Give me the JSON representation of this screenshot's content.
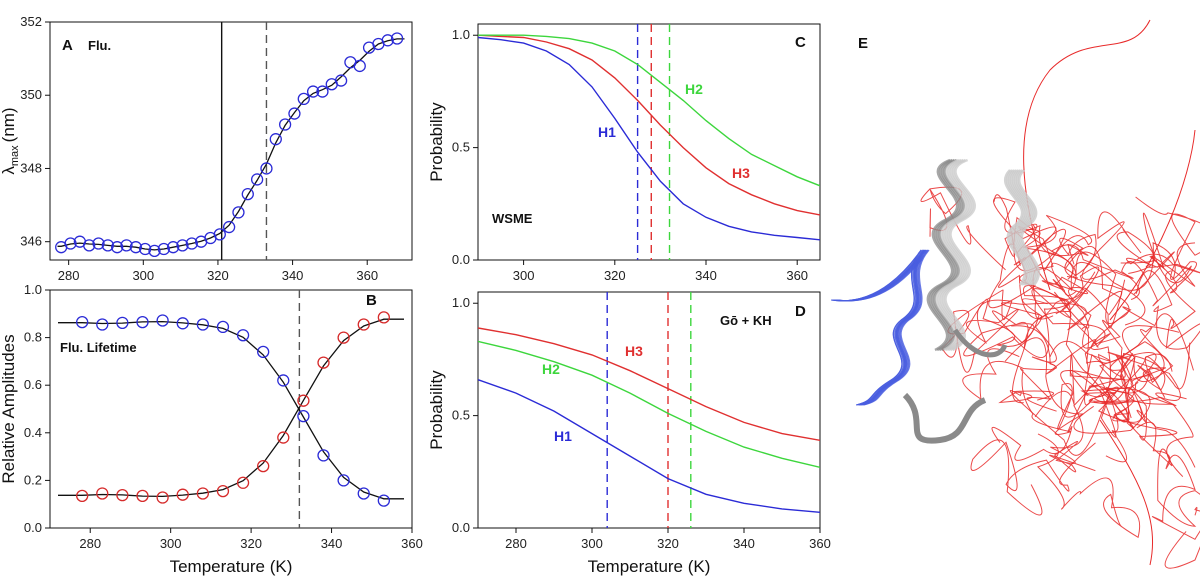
{
  "chart_data": [
    {
      "id": "A",
      "panel_label": "A",
      "type": "scatter",
      "annotation": "Flu.",
      "xlabel": "",
      "ylabel_main": "λ",
      "ylabel_sub": "max",
      "ylabel_unit": "(nm)",
      "xlim": [
        275,
        372
      ],
      "ylim": [
        345.5,
        352
      ],
      "xticks": [
        280,
        300,
        320,
        340,
        360
      ],
      "yticks": [
        346,
        348,
        350,
        352
      ],
      "vlines": [
        {
          "x": 321,
          "style": "solid",
          "color": "#111111"
        },
        {
          "x": 333,
          "style": "dashed",
          "color": "#555555"
        }
      ],
      "series": [
        {
          "marker_color": "#2b2bd6",
          "x": [
            278,
            280.5,
            283,
            285.5,
            288,
            290.5,
            293,
            295.5,
            298,
            300.5,
            303,
            305.5,
            308,
            310.5,
            313,
            315.5,
            318,
            320.5,
            323,
            325.5,
            328,
            330.5,
            333,
            335.5,
            338,
            340.5,
            343,
            345.5,
            348,
            350.5,
            353,
            355.5,
            358,
            360.5,
            363,
            365.5,
            368
          ],
          "y": [
            345.85,
            345.95,
            346.0,
            345.9,
            345.95,
            345.9,
            345.85,
            345.9,
            345.85,
            345.8,
            345.75,
            345.8,
            345.85,
            345.9,
            345.95,
            346.0,
            346.1,
            346.2,
            346.4,
            346.8,
            347.3,
            347.7,
            348.0,
            348.8,
            349.2,
            349.5,
            349.9,
            350.1,
            350.1,
            350.3,
            350.4,
            350.9,
            350.8,
            351.3,
            351.4,
            351.5,
            351.55
          ],
          "fit_color": "#111111"
        }
      ]
    },
    {
      "id": "B",
      "panel_label": "B",
      "type": "scatter",
      "annotation": "Flu. Lifetime",
      "xlabel": "Temperature (K)",
      "ylabel": "Relative Amplitudes",
      "xlim": [
        270,
        360
      ],
      "ylim": [
        0.0,
        1.0
      ],
      "xticks": [
        280,
        300,
        320,
        340,
        360
      ],
      "yticks": [
        0.0,
        0.2,
        0.4,
        0.6,
        0.8,
        1.0
      ],
      "vlines": [
        {
          "x": 332,
          "style": "dashed",
          "color": "#555555"
        }
      ],
      "series": [
        {
          "marker_color": "#2b2bd6",
          "x": [
            278,
            283,
            288,
            293,
            298,
            303,
            308,
            313,
            318,
            323,
            328,
            333,
            338,
            343,
            348,
            353
          ],
          "y": [
            0.865,
            0.855,
            0.862,
            0.865,
            0.872,
            0.86,
            0.855,
            0.845,
            0.81,
            0.74,
            0.62,
            0.47,
            0.305,
            0.2,
            0.145,
            0.115
          ],
          "fit_color": "#111111"
        },
        {
          "marker_color": "#d62b2b",
          "x": [
            278,
            283,
            288,
            293,
            298,
            303,
            308,
            313,
            318,
            323,
            328,
            333,
            338,
            343,
            348,
            353
          ],
          "y": [
            0.135,
            0.145,
            0.138,
            0.135,
            0.128,
            0.14,
            0.145,
            0.155,
            0.19,
            0.26,
            0.38,
            0.535,
            0.695,
            0.8,
            0.855,
            0.885
          ],
          "fit_color": "#111111"
        }
      ]
    },
    {
      "id": "C",
      "panel_label": "C",
      "type": "line",
      "annotation": "WSME",
      "xlabel": "",
      "ylabel": "Probability",
      "xlim": [
        290,
        365
      ],
      "ylim": [
        0.0,
        1.05
      ],
      "xticks": [
        300,
        320,
        340,
        360
      ],
      "yticks": [
        0.0,
        0.5,
        1.0
      ],
      "vlines": [
        {
          "x": 325,
          "style": "dashed",
          "color": "#2b2bd6"
        },
        {
          "x": 328,
          "style": "dashed",
          "color": "#e03030"
        },
        {
          "x": 332,
          "style": "dashed",
          "color": "#3dd63d"
        }
      ],
      "series": [
        {
          "name": "H1",
          "color": "#2b2bd6",
          "x": [
            290,
            295,
            300,
            305,
            310,
            315,
            320,
            325,
            330,
            335,
            340,
            345,
            350,
            355,
            360,
            365
          ],
          "y": [
            0.99,
            0.98,
            0.965,
            0.93,
            0.87,
            0.77,
            0.63,
            0.48,
            0.35,
            0.25,
            0.19,
            0.15,
            0.125,
            0.11,
            0.1,
            0.09
          ]
        },
        {
          "name": "H3",
          "color": "#e03030",
          "x": [
            290,
            295,
            300,
            305,
            310,
            315,
            320,
            325,
            330,
            335,
            340,
            345,
            350,
            355,
            360,
            365
          ],
          "y": [
            1.0,
            0.995,
            0.99,
            0.97,
            0.94,
            0.89,
            0.81,
            0.71,
            0.6,
            0.5,
            0.41,
            0.34,
            0.29,
            0.25,
            0.22,
            0.2
          ]
        },
        {
          "name": "H2",
          "color": "#3dd63d",
          "x": [
            290,
            295,
            300,
            305,
            310,
            315,
            320,
            325,
            330,
            335,
            340,
            345,
            350,
            355,
            360,
            365
          ],
          "y": [
            1.0,
            1.0,
            1.0,
            0.995,
            0.985,
            0.965,
            0.93,
            0.87,
            0.79,
            0.71,
            0.62,
            0.54,
            0.47,
            0.42,
            0.37,
            0.33
          ]
        }
      ]
    },
    {
      "id": "D",
      "panel_label": "D",
      "type": "line",
      "annotation": "Gō + KH",
      "xlabel": "Temperature (K)",
      "ylabel": "Probability",
      "xlim": [
        270,
        360
      ],
      "ylim": [
        0.0,
        1.05
      ],
      "xticks": [
        280,
        300,
        320,
        340,
        360
      ],
      "yticks": [
        0.0,
        0.5,
        1.0
      ],
      "vlines": [
        {
          "x": 304,
          "style": "dashed",
          "color": "#2b2bd6"
        },
        {
          "x": 320,
          "style": "dashed",
          "color": "#e03030"
        },
        {
          "x": 326,
          "style": "dashed",
          "color": "#3dd63d"
        }
      ],
      "series": [
        {
          "name": "H3",
          "color": "#e03030",
          "x": [
            270,
            280,
            290,
            300,
            310,
            320,
            330,
            340,
            350,
            360
          ],
          "y": [
            0.89,
            0.86,
            0.82,
            0.77,
            0.7,
            0.62,
            0.54,
            0.47,
            0.42,
            0.39
          ]
        },
        {
          "name": "H2",
          "color": "#3dd63d",
          "x": [
            270,
            280,
            290,
            300,
            310,
            320,
            330,
            340,
            350,
            360
          ],
          "y": [
            0.83,
            0.79,
            0.74,
            0.68,
            0.6,
            0.51,
            0.43,
            0.36,
            0.31,
            0.27
          ]
        },
        {
          "name": "H1",
          "color": "#2b2bd6",
          "x": [
            270,
            280,
            290,
            300,
            310,
            320,
            330,
            340,
            350,
            360
          ],
          "y": [
            0.66,
            0.6,
            0.52,
            0.42,
            0.32,
            0.22,
            0.15,
            0.11,
            0.085,
            0.07
          ]
        }
      ]
    }
  ],
  "structure_panel": {
    "label": "E",
    "colors": {
      "helix_grey": "#8a8a8a",
      "blue": "#4a5ee0",
      "red": "#e82a2a",
      "light_grey": "#c9c9c9"
    }
  }
}
